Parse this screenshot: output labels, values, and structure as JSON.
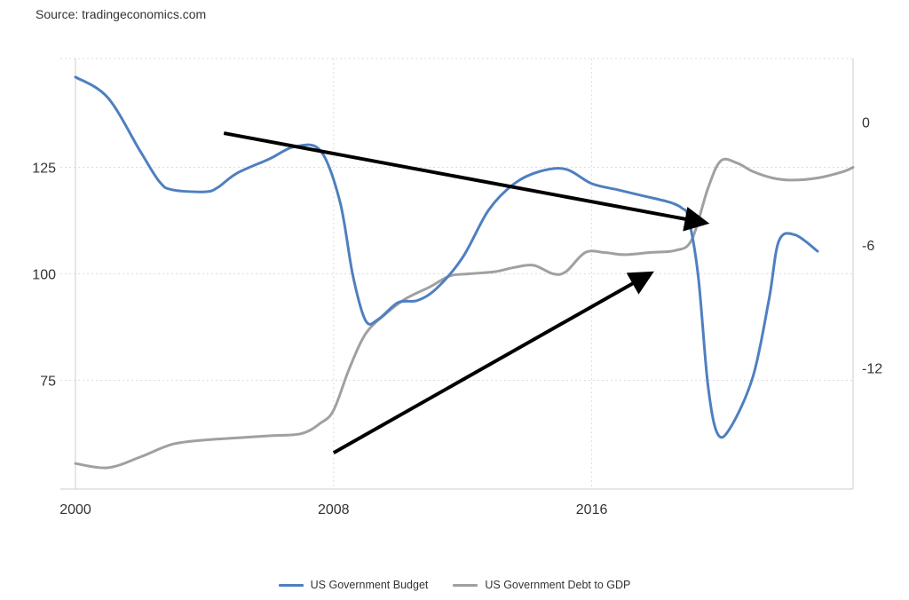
{
  "source": "Source: tradingeconomics.com",
  "colors": {
    "budget": "#4F7FC0",
    "debt": "#A0A0A0",
    "arrow": "#000000",
    "grid": "#DDDDDD"
  },
  "chart_data": {
    "type": "line",
    "x_ticks": [
      "2000",
      "2008",
      "2016"
    ],
    "y_left": {
      "ticks": [
        75,
        100,
        125
      ],
      "range": [
        49.5,
        150.5
      ]
    },
    "y_right": {
      "ticks": [
        -12,
        -6,
        0
      ],
      "range": [
        -17.9,
        3.1
      ]
    },
    "grid": true,
    "legend_position": "bottom",
    "series": [
      {
        "name": "US Government Budget",
        "axis": "right",
        "color": "#4F7FC0",
        "points": [
          [
            2000.0,
            2.2
          ],
          [
            2001.0,
            1.2
          ],
          [
            2002.0,
            -1.4
          ],
          [
            2002.6,
            -2.9
          ],
          [
            2003.0,
            -3.3
          ],
          [
            2004.0,
            -3.4
          ],
          [
            2004.4,
            -3.2
          ],
          [
            2005.0,
            -2.5
          ],
          [
            2006.0,
            -1.8
          ],
          [
            2006.8,
            -1.2
          ],
          [
            2007.6,
            -1.4
          ],
          [
            2008.2,
            -3.9
          ],
          [
            2008.6,
            -7.5
          ],
          [
            2009.0,
            -9.7
          ],
          [
            2009.4,
            -9.6
          ],
          [
            2010.0,
            -8.8
          ],
          [
            2010.6,
            -8.7
          ],
          [
            2011.2,
            -8.1
          ],
          [
            2012.0,
            -6.6
          ],
          [
            2012.8,
            -4.3
          ],
          [
            2013.6,
            -3.0
          ],
          [
            2014.4,
            -2.4
          ],
          [
            2015.2,
            -2.3
          ],
          [
            2016.0,
            -3.0
          ],
          [
            2016.8,
            -3.3
          ],
          [
            2017.6,
            -3.6
          ],
          [
            2018.4,
            -3.9
          ],
          [
            2018.8,
            -4.2
          ],
          [
            2019.0,
            -4.7
          ],
          [
            2019.3,
            -7.5
          ],
          [
            2019.6,
            -12.8
          ],
          [
            2019.9,
            -15.2
          ],
          [
            2020.3,
            -14.9
          ],
          [
            2021.0,
            -12.4
          ],
          [
            2021.5,
            -8.6
          ],
          [
            2021.8,
            -5.8
          ],
          [
            2022.3,
            -5.5
          ],
          [
            2023.0,
            -6.3
          ]
        ]
      },
      {
        "name": "US Government Debt to GDP",
        "axis": "left",
        "color": "#A0A0A0",
        "points": [
          [
            2000.0,
            55.5
          ],
          [
            2001.0,
            54.5
          ],
          [
            2002.0,
            57.0
          ],
          [
            2003.0,
            60.0
          ],
          [
            2004.0,
            61.0
          ],
          [
            2005.0,
            61.5
          ],
          [
            2006.0,
            62.0
          ],
          [
            2007.0,
            62.5
          ],
          [
            2007.6,
            65.0
          ],
          [
            2008.0,
            68.0
          ],
          [
            2008.5,
            78.0
          ],
          [
            2009.0,
            86.0
          ],
          [
            2009.6,
            90.5
          ],
          [
            2010.2,
            94.0
          ],
          [
            2011.0,
            97.0
          ],
          [
            2011.6,
            99.5
          ],
          [
            2012.2,
            100.0
          ],
          [
            2013.0,
            100.5
          ],
          [
            2013.6,
            101.5
          ],
          [
            2014.2,
            102.0
          ],
          [
            2014.8,
            100.0
          ],
          [
            2015.2,
            100.5
          ],
          [
            2015.8,
            105.0
          ],
          [
            2016.4,
            105.0
          ],
          [
            2017.0,
            104.5
          ],
          [
            2017.8,
            105.0
          ],
          [
            2018.6,
            105.5
          ],
          [
            2019.1,
            108.0
          ],
          [
            2019.6,
            120.0
          ],
          [
            2020.0,
            126.5
          ],
          [
            2020.5,
            126.0
          ],
          [
            2021.0,
            124.0
          ],
          [
            2021.6,
            122.5
          ],
          [
            2022.2,
            122.0
          ],
          [
            2023.0,
            122.5
          ],
          [
            2023.8,
            124.0
          ],
          [
            2024.1,
            125.0
          ]
        ]
      }
    ],
    "annotations": [
      {
        "type": "arrow",
        "from": [
          2004.6,
          133
        ],
        "to": [
          2019.5,
          112
        ]
      },
      {
        "type": "arrow",
        "from": [
          2008.0,
          58
        ],
        "to": [
          2017.8,
          100
        ]
      }
    ]
  },
  "legend": [
    {
      "label": "US Government Budget",
      "color": "#4F7FC0"
    },
    {
      "label": "US Government Debt to GDP",
      "color": "#A0A0A0"
    }
  ]
}
